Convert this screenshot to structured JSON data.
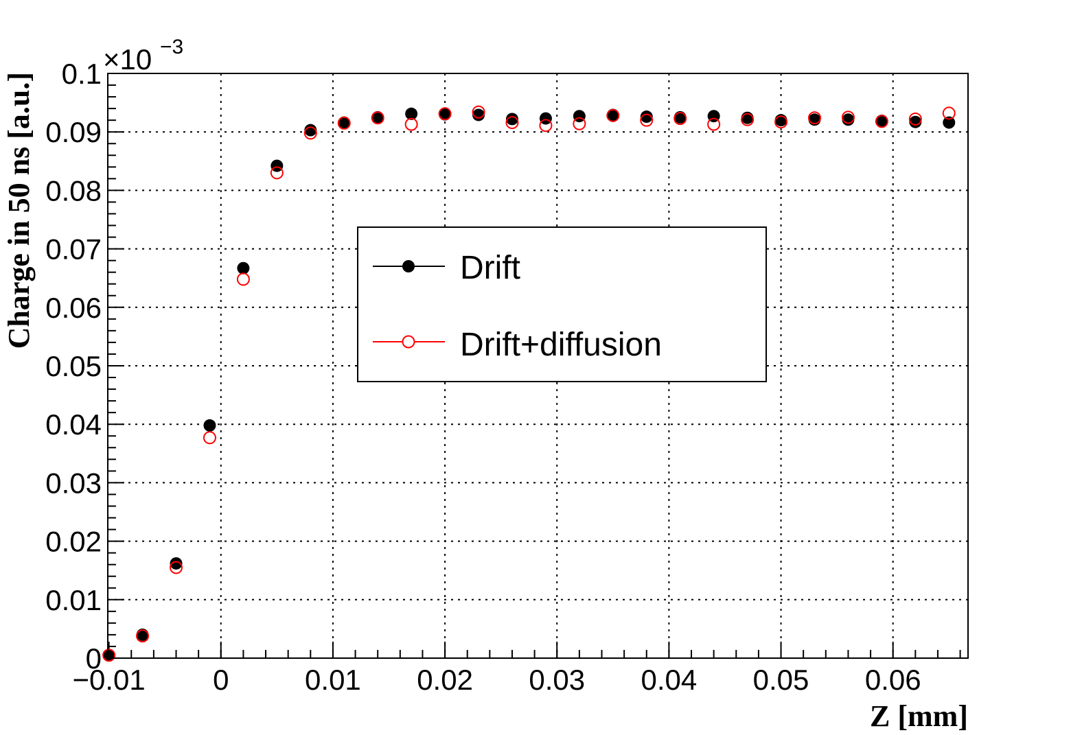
{
  "chart_data": {
    "type": "scatter",
    "title": "",
    "xlabel": "Z [mm]",
    "ylabel": "Charge in 50 ns [a.u.]",
    "y_multiplier": {
      "base": "×10",
      "exponent": "−3"
    },
    "xlim": [
      -0.0101,
      0.0667
    ],
    "ylim": [
      0,
      0.1
    ],
    "x_ticks": [
      -0.01,
      0,
      0.01,
      0.02,
      0.03,
      0.04,
      0.05,
      0.06
    ],
    "x_tick_labels": [
      "−0.01",
      "0",
      "0.01",
      "0.02",
      "0.03",
      "0.04",
      "0.05",
      "0.06"
    ],
    "y_ticks": [
      0,
      0.01,
      0.02,
      0.03,
      0.04,
      0.05,
      0.06,
      0.07,
      0.08,
      0.09,
      0.1
    ],
    "y_tick_labels": [
      "0",
      "0.01",
      "0.02",
      "0.03",
      "0.04",
      "0.05",
      "0.06",
      "0.07",
      "0.08",
      "0.09",
      "0.1"
    ],
    "grid": true,
    "legend_position": "center",
    "series": [
      {
        "name": "Drift",
        "marker": "filled-circle",
        "color": "#000000",
        "x": [
          -0.01,
          -0.007,
          -0.004,
          -0.001,
          0.002,
          0.005,
          0.008,
          0.011,
          0.014,
          0.017,
          0.02,
          0.023,
          0.026,
          0.029,
          0.032,
          0.035,
          0.038,
          0.041,
          0.044,
          0.047,
          0.05,
          0.053,
          0.056,
          0.059,
          0.062,
          0.065
        ],
        "y": [
          0.0005,
          0.004,
          0.0162,
          0.0398,
          0.0667,
          0.0842,
          0.0903,
          0.0916,
          0.0925,
          0.0931,
          0.093,
          0.0929,
          0.0922,
          0.0923,
          0.0927,
          0.0929,
          0.0926,
          0.0925,
          0.0927,
          0.0924,
          0.092,
          0.0921,
          0.0921,
          0.0919,
          0.0917,
          0.0916
        ]
      },
      {
        "name": "Drift+diffusion",
        "marker": "open-circle",
        "color": "#ff0000",
        "x": [
          -0.01,
          -0.007,
          -0.004,
          -0.001,
          0.002,
          0.005,
          0.008,
          0.011,
          0.014,
          0.017,
          0.02,
          0.023,
          0.026,
          0.029,
          0.032,
          0.035,
          0.038,
          0.041,
          0.044,
          0.047,
          0.05,
          0.053,
          0.056,
          0.059,
          0.062,
          0.065
        ],
        "y": [
          0.0005,
          0.0038,
          0.0155,
          0.0377,
          0.0648,
          0.083,
          0.0898,
          0.0915,
          0.0924,
          0.0913,
          0.0931,
          0.0934,
          0.0916,
          0.0911,
          0.0914,
          0.0928,
          0.092,
          0.0923,
          0.0913,
          0.0921,
          0.0917,
          0.0924,
          0.0925,
          0.0918,
          0.0922,
          0.0932
        ]
      }
    ]
  }
}
